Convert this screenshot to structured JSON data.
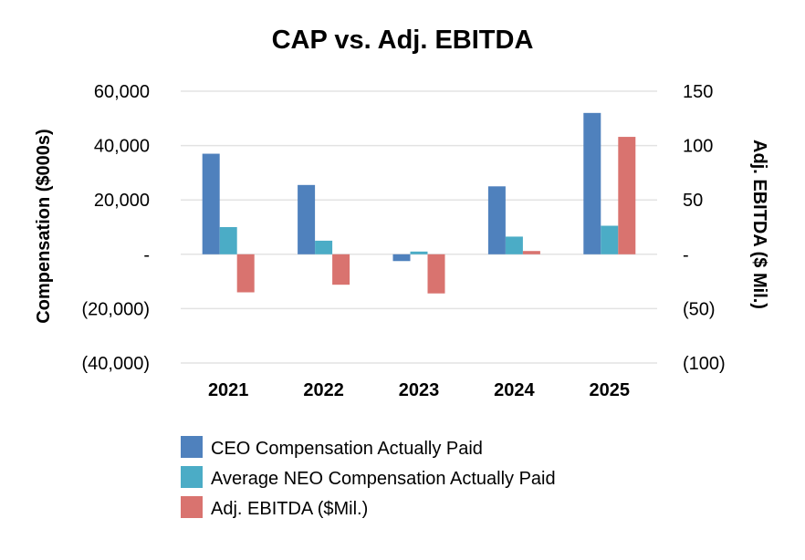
{
  "chart_data": {
    "type": "bar",
    "title": "CAP vs. Adj. EBITDA",
    "categories": [
      "2021",
      "2022",
      "2023",
      "2024",
      "2025"
    ],
    "series": [
      {
        "name": "CEO Compensation Actually Paid",
        "axis": "left",
        "color": "#4f81bd",
        "values": [
          37000,
          25500,
          -2500,
          25000,
          52000
        ]
      },
      {
        "name": "Average NEO Compensation Actually Paid",
        "axis": "left",
        "color": "#4bacc6",
        "values": [
          10000,
          5000,
          1000,
          6500,
          10500
        ]
      },
      {
        "name": "Adj. EBITDA ($Mil.)",
        "axis": "right",
        "color": "#d9736f",
        "values": [
          -35,
          -28,
          -36,
          3,
          108
        ]
      }
    ],
    "y_left": {
      "label": "Compensation ($000s)",
      "range": [
        -40000,
        60000
      ],
      "ticks": [
        60000,
        40000,
        20000,
        0,
        -20000,
        -40000
      ],
      "tick_labels": [
        "60,000",
        "40,000",
        "20,000",
        "-",
        "(20,000)",
        "(40,000)"
      ]
    },
    "y_right": {
      "label": "Adj. EBITDA ($ Mil.)",
      "range": [
        -100,
        150
      ],
      "ticks": [
        150,
        100,
        50,
        0,
        -50,
        -100
      ],
      "tick_labels": [
        "150",
        "100",
        "50",
        "-",
        "(50)",
        "(100)"
      ]
    },
    "grid": true,
    "legend_position": "bottom"
  }
}
